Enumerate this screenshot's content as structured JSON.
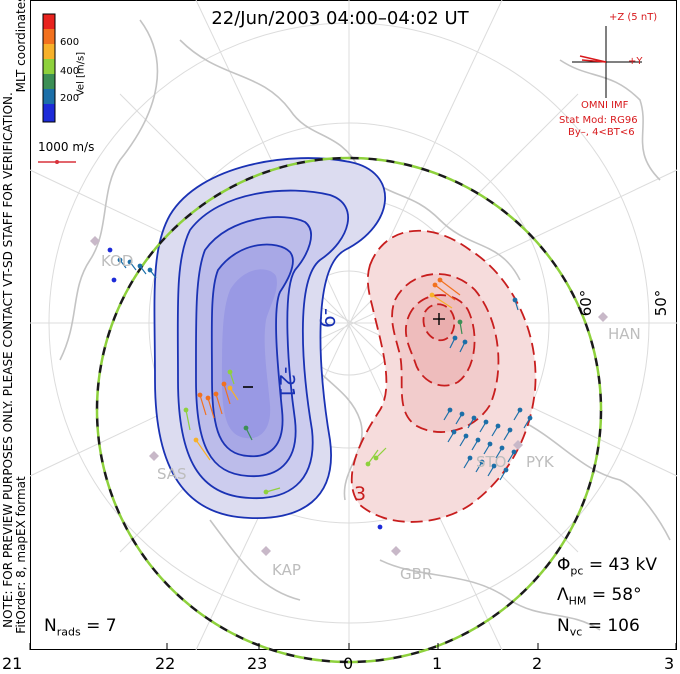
{
  "title": "22/Jun/2003 04:00–04:02 UT",
  "side_labels": {
    "coords": "MLT coordinates",
    "notice": "NOTE: FOR PREVIEW PURPOSES ONLY. PLEASE CONTACT VT-SD STAFF FOR VERIFICATION.",
    "fitorder": "FitOrder: 8, mapEX format"
  },
  "colorbar": {
    "label": "Vel [m/s]",
    "ticks": [
      "600",
      "400",
      "200"
    ],
    "colors": [
      "#e8231e",
      "#f2711e",
      "#f7b12a",
      "#8ed13c",
      "#3c8f55",
      "#1c6fa8",
      "#1d2bd8"
    ]
  },
  "scale_vector": {
    "label": "1000 m/s",
    "color": "#d8323c"
  },
  "imf": {
    "axis_z": "+Z (5 nT)",
    "axis_y": "+Y",
    "source": "OMNI IMF",
    "model": "Stat Mod: RG96",
    "condition": "By–, 4<BT<6",
    "color": "#d8191c"
  },
  "latitude_labels": [
    "60°",
    "50°"
  ],
  "potential_contours": {
    "negative_labels": [
      "-9",
      "-21"
    ],
    "negative_min_mark": "–",
    "positive_label": "3",
    "positive_max_mark": "+"
  },
  "stations": [
    "KOD",
    "SAS",
    "KAP",
    "GBR",
    "STO",
    "PYK",
    "HAN"
  ],
  "stats": {
    "phi_symbol": "Φ",
    "phi_sub": "pc",
    "phi_value": "= 43 kV",
    "lambda_symbol": "Λ",
    "lambda_sub": "HM",
    "lambda_value": "= 58°",
    "nvc_symbol": "N",
    "nvc_sub": "vc",
    "nvc_value": "= 106",
    "nrads_symbol": "N",
    "nrads_sub": "rads",
    "nrads_value": "= 7"
  },
  "mlt_ticks": [
    "21",
    "22",
    "23",
    "0",
    "1",
    "2",
    "3"
  ]
}
